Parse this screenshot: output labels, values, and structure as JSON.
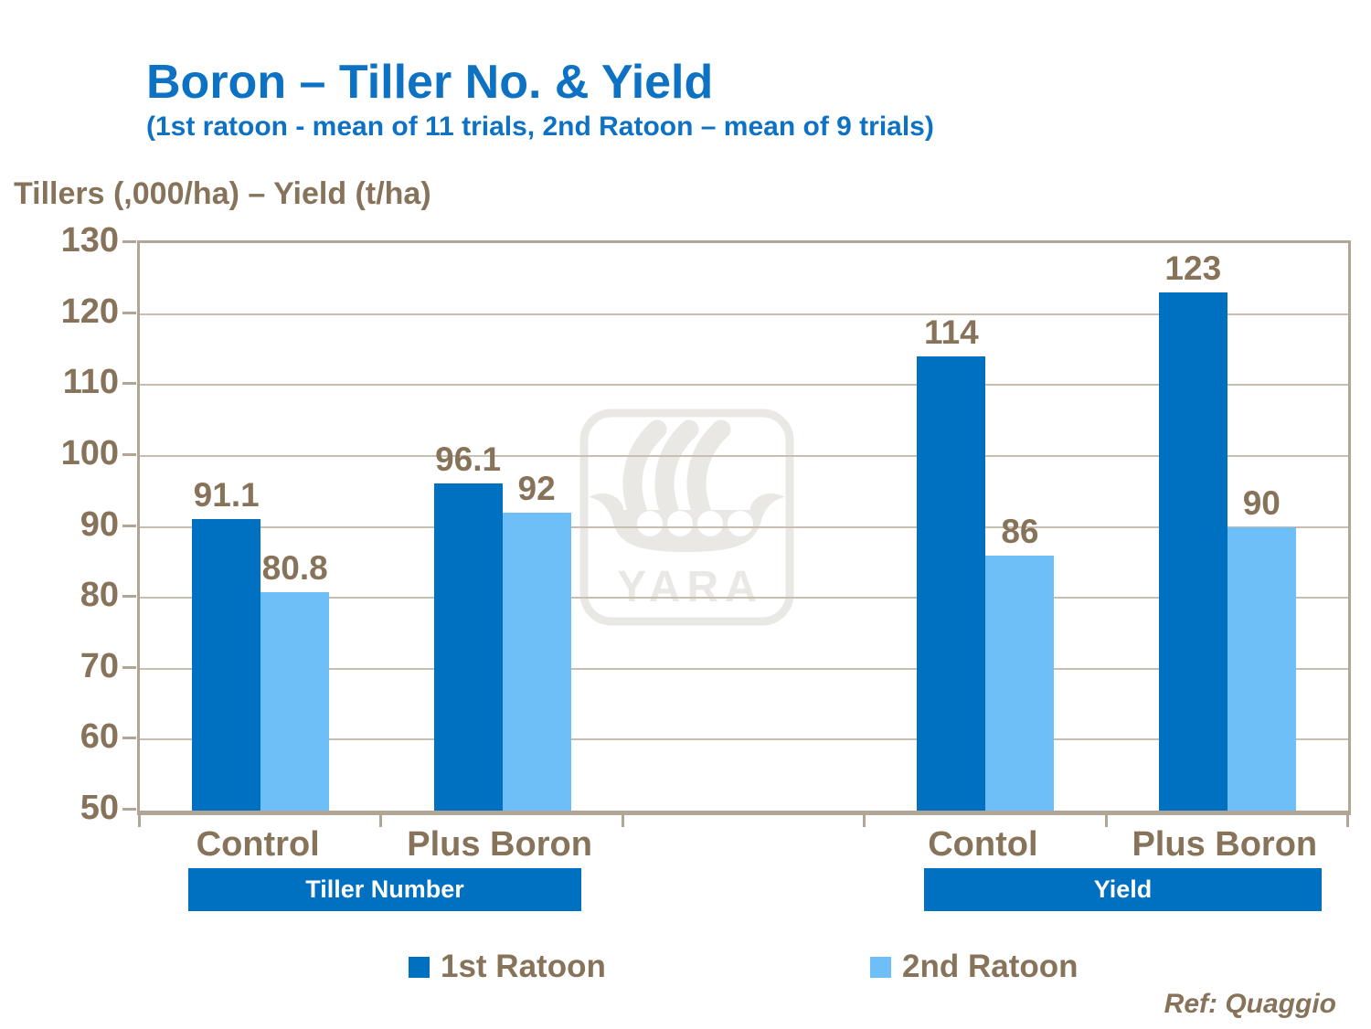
{
  "slide": {
    "title": "Boron – Tiller No. & Yield",
    "subtitle": "(1st ratoon - mean of 11 trials, 2nd Ratoon – mean of 9 trials)",
    "axis_title": "Tillers (,000/ha) – Yield (t/ha)",
    "reference": "Ref: Quaggio",
    "watermark_text": "YARA"
  },
  "group_bands": [
    {
      "label": "Tiller Number"
    },
    {
      "label": "Yield"
    }
  ],
  "legend": [
    {
      "label": "1st Ratoon",
      "color": "#0070C0"
    },
    {
      "label": "2nd Ratoon",
      "color": "#6EBEF8"
    }
  ],
  "colors": {
    "title_blue": "#0D72C4",
    "text_brown": "#86735A",
    "band_blue": "#0070C0",
    "bar_dark_blue": "#0070C0",
    "bar_light_blue": "#6EBEF8",
    "gridline": "#C9BFB1",
    "frame": "#B1A595",
    "watermark_gray": "#EAE8E5"
  },
  "chart_data": {
    "type": "bar",
    "title": "Boron – Tiller No. & Yield",
    "subtitle": "(1st ratoon - mean of 11 trials, 2nd Ratoon – mean of 9 trials)",
    "xlabel": "",
    "ylabel": "Tillers (,000/ha) – Yield (t/ha)",
    "ylim": [
      50,
      130
    ],
    "ytick_step": 10,
    "grid": true,
    "legend_position": "bottom",
    "categories": [
      "Control",
      "Plus Boron",
      "Contol",
      "Plus Boron"
    ],
    "category_groups": [
      "Tiller Number",
      "Tiller Number",
      "Yield",
      "Yield"
    ],
    "series": [
      {
        "name": "1st Ratoon",
        "color": "#0070C0",
        "values": [
          91.1,
          96.1,
          114,
          123
        ],
        "labels": [
          "91.1",
          "96.1",
          "114",
          "123"
        ]
      },
      {
        "name": "2nd Ratoon",
        "color": "#6EBEF8",
        "values": [
          80.8,
          92,
          86,
          90
        ],
        "labels": [
          "80.8",
          "92",
          "86",
          "90"
        ]
      }
    ]
  }
}
